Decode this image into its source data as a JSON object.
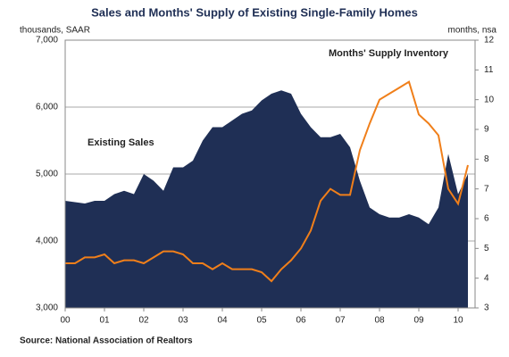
{
  "chart_data": {
    "type": "area",
    "title": "Sales and Months' Supply of Existing Single-Family Homes",
    "y_label": "thousands, SAAR",
    "y2_label": "months, nsa",
    "source": "Source: National Association of Realtors",
    "categories": [
      "00",
      null,
      null,
      null,
      "01",
      null,
      null,
      null,
      "02",
      null,
      null,
      null,
      "03",
      null,
      null,
      null,
      "04",
      null,
      null,
      null,
      "05",
      null,
      null,
      null,
      "06",
      null,
      null,
      null,
      "07",
      null,
      null,
      null,
      "08",
      null,
      null,
      null,
      "09",
      null,
      null,
      null,
      "10",
      null
    ],
    "series": [
      {
        "name": "Existing Sales",
        "color": "#1f2f55",
        "type": "area",
        "values": [
          4600,
          4580,
          4560,
          4600,
          4600,
          4700,
          4750,
          4700,
          5000,
          4900,
          4750,
          5100,
          5100,
          5200,
          5500,
          5700,
          5700,
          5800,
          5900,
          5950,
          6100,
          6200,
          6250,
          6200,
          5900,
          5700,
          5550,
          5550,
          5600,
          5400,
          4900,
          4500,
          4400,
          4350,
          4350,
          4400,
          4350,
          4250,
          4500,
          5300,
          4700,
          5000
        ]
      },
      {
        "name": "Months' Supply Inventory",
        "color": "#f07f1a",
        "type": "line",
        "axis": "y2",
        "values": [
          4.5,
          4.5,
          4.7,
          4.7,
          4.8,
          4.5,
          4.6,
          4.6,
          4.5,
          4.7,
          4.9,
          4.9,
          4.8,
          4.5,
          4.5,
          4.3,
          4.5,
          4.3,
          4.3,
          4.3,
          4.2,
          3.9,
          4.3,
          4.6,
          5.0,
          5.6,
          6.6,
          7.0,
          6.8,
          6.8,
          8.3,
          9.2,
          10.0,
          10.2,
          10.4,
          10.6,
          9.5,
          9.2,
          8.8,
          7.0,
          6.5,
          7.8
        ]
      }
    ],
    "ylim": [
      3000,
      7000
    ],
    "yticks": [
      {
        "value": 3000,
        "label": "3,000"
      },
      {
        "value": 4000,
        "label": "4,000"
      },
      {
        "value": 5000,
        "label": "5,000"
      },
      {
        "value": 6000,
        "label": "6,000"
      },
      {
        "value": 7000,
        "label": "7,000"
      }
    ],
    "y2lim": [
      3,
      12
    ],
    "y2ticks": [
      3,
      4,
      5,
      6,
      7,
      8,
      9,
      10,
      11,
      12
    ],
    "grid": true
  }
}
